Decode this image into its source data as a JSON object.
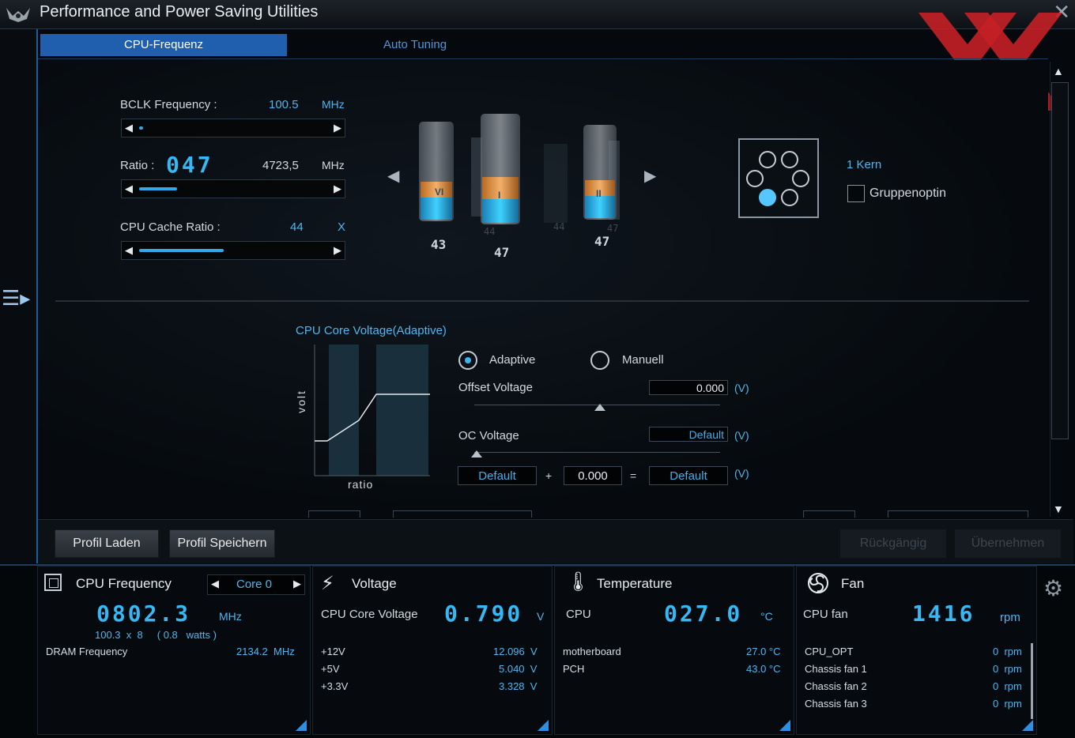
{
  "app": {
    "title": "Performance and Power Saving Utilities",
    "close_glyph": "✕"
  },
  "tabs": [
    {
      "label": "CPU-Frequenz",
      "active": true
    },
    {
      "label": "Auto Tuning",
      "active": false
    }
  ],
  "freq": {
    "bclk_label": "BCLK Frequency :",
    "bclk_value": "100.5",
    "bclk_unit": "MHz",
    "bclk_slider_level": 0.02,
    "ratio_label": "Ratio :",
    "ratio_value": "047",
    "ratio_mhz": "4723,5",
    "ratio_unit": "MHz",
    "ratio_slider_level": 0.2,
    "cache_label": "CPU Cache Ratio :",
    "cache_value": "44",
    "cache_unit": "X",
    "cache_slider_level": 0.45
  },
  "cores": {
    "labels": [
      "43",
      "47",
      "44",
      "44",
      "47",
      "47"
    ],
    "cylinder_markers": [
      "VI",
      "I",
      "II"
    ],
    "kern_label": "1 Kern",
    "group_label": "Gruppenoptin",
    "group_checked": false
  },
  "voltage": {
    "section_title": "CPU Core Voltage(Adaptive)",
    "graph_ylabel": "volt",
    "graph_xlabel": "ratio",
    "mode_adaptive": "Adaptive",
    "mode_manual": "Manuell",
    "selected_mode": "Adaptive",
    "offset_label": "Offset Voltage",
    "offset_value": "0.000",
    "oc_label": "OC Voltage",
    "oc_value": "Default",
    "unit": "(V)",
    "sum_a": "Default",
    "plus": "+",
    "sum_b": "0.000",
    "equals": "=",
    "sum_result": "Default"
  },
  "buttons": {
    "load": "Profil Laden",
    "save": "Profil Speichern",
    "undo": "Rückgängig",
    "apply": "Übernehmen"
  },
  "monitor": {
    "cpu": {
      "title": "CPU Frequency",
      "core_select": "Core 0",
      "value": "0802.3",
      "unit": "MHz",
      "detail": "100.3  x  8     ( 0.8   watts )",
      "dram_label": "DRAM Frequency",
      "dram_value": "2134.2  MHz"
    },
    "voltage": {
      "title": "Voltage",
      "main_label": "CPU Core Voltage",
      "main_value": "0.790",
      "main_unit": "V",
      "rows": [
        {
          "label": "+12V",
          "value": "12.096  V"
        },
        {
          "label": "+5V",
          "value": "5.040  V"
        },
        {
          "label": "+3.3V",
          "value": "3.328  V"
        }
      ]
    },
    "temperature": {
      "title": "Temperature",
      "main_label": "CPU",
      "main_value": "027.0",
      "main_unit": "°C",
      "rows": [
        {
          "label": "motherboard",
          "value": "27.0 °C"
        },
        {
          "label": "PCH",
          "value": "43.0 °C"
        }
      ]
    },
    "fan": {
      "title": "Fan",
      "main_label": "CPU fan",
      "main_value": "1416",
      "main_unit": "rpm",
      "rows": [
        {
          "label": "CPU_OPT",
          "value": "0  rpm"
        },
        {
          "label": "Chassis fan 1",
          "value": "0  rpm"
        },
        {
          "label": "Chassis fan 2",
          "value": "0  rpm"
        },
        {
          "label": "Chassis fan 3",
          "value": "0  rpm"
        }
      ]
    }
  },
  "colors": {
    "accent": "#36b8f4",
    "tab_active": "#1f5fae",
    "watermark": "#c42026"
  }
}
